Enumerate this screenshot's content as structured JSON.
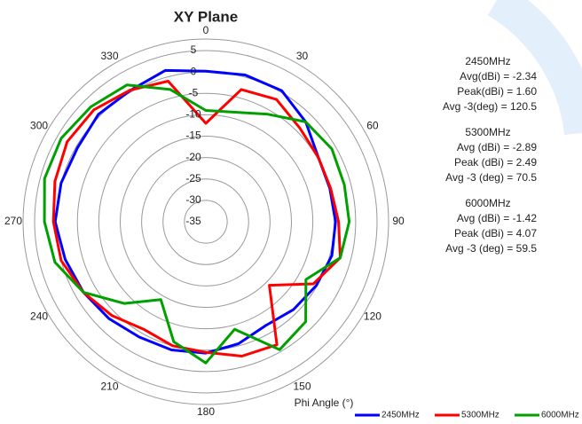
{
  "chart_data": {
    "type": "polar",
    "title": "XY Plane",
    "xlabel": "Phi Angle (°)",
    "x": [
      0,
      15,
      30,
      45,
      60,
      75,
      90,
      105,
      120,
      135,
      150,
      165,
      180,
      195,
      210,
      225,
      240,
      255,
      270,
      285,
      300,
      315,
      330,
      345
    ],
    "series": [
      {
        "name": "2450MHz",
        "color": "#0000ff",
        "values": [
          0.2,
          0.5,
          0.4,
          -2,
          -4.7,
          -5,
          -4.7,
          -4.5,
          -5.2,
          -6,
          -7,
          -5.5,
          -4.3,
          -4,
          -3.9,
          -3,
          -2,
          -1,
          0.2,
          0,
          -0.4,
          0.5,
          0.4,
          1.6
        ]
      },
      {
        "name": "5300MHz",
        "color": "#ff0000",
        "values": [
          -12,
          -3,
          -2,
          -4,
          -4.7,
          -4.8,
          -4,
          -2.5,
          -6,
          -14,
          -1.8,
          -2.5,
          -4.5,
          -5,
          -6,
          -4,
          -2,
          0,
          0.6,
          1.5,
          2.4,
          2,
          0.5,
          -1
        ]
      },
      {
        "name": "6000MHz",
        "color": "#00a000",
        "values": [
          -9,
          -8.5,
          -6,
          -2,
          -1,
          -1.5,
          -1.5,
          -2.5,
          -8,
          -2,
          -0.5,
          -9,
          -2,
          -6,
          -14,
          -8,
          -2,
          1.5,
          2.7,
          4,
          4,
          3,
          1.9,
          -3
        ]
      }
    ],
    "ylim": [
      -35,
      5
    ],
    "yticks": [
      -35,
      -30,
      -25,
      -20,
      -15,
      -10,
      -5,
      0,
      5
    ],
    "xticks": [
      0,
      30,
      60,
      90,
      120,
      150,
      180,
      210,
      240,
      270,
      300,
      330
    ],
    "annotations": [
      "2450MHz",
      "Avg(dBi) = -2.34",
      "Peak(dBi) = 1.60",
      "Avg -3(deg) = 120.5",
      "5300MHz",
      "Avg (dBi) =  -2.89",
      "Peak (dBi) =  2.49",
      "Avg -3 (deg) =  70.5",
      "6000MHz",
      "Avg (dBi) =  -1.42",
      "Peak (dBi) =  4.07",
      "Avg -3 (deg) =  59.5"
    ],
    "legend": "bottom-right"
  }
}
